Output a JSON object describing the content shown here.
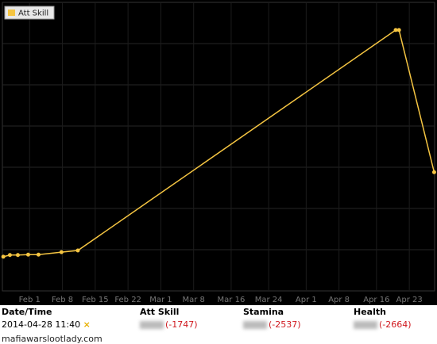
{
  "chart_data": {
    "type": "line",
    "series": [
      {
        "name": "Att Skill",
        "color": "#f5c542",
        "x": [
          26.4,
          27.8,
          29.5,
          31.7,
          33.9,
          38.8,
          42.3,
          110.1,
          110.8,
          118.3
        ],
        "values": [
          0.83,
          0.87,
          0.87,
          0.88,
          0.88,
          0.94,
          0.98,
          6.33,
          6.33,
          2.88
        ]
      }
    ],
    "xlim": [
      26.2,
      118.4
    ],
    "xticks": [
      {
        "value": 32,
        "label": "Feb 1"
      },
      {
        "value": 39,
        "label": "Feb 8"
      },
      {
        "value": 46,
        "label": "Feb 15"
      },
      {
        "value": 53,
        "label": "Feb 22"
      },
      {
        "value": 60,
        "label": "Mar 1"
      },
      {
        "value": 67,
        "label": "Mar 8"
      },
      {
        "value": 75,
        "label": "Mar 16"
      },
      {
        "value": 83,
        "label": "Mar 24"
      },
      {
        "value": 91,
        "label": "Apr 1"
      },
      {
        "value": 98,
        "label": "Apr 8"
      },
      {
        "value": 106,
        "label": "Apr 16"
      },
      {
        "value": 113,
        "label": "Apr 23"
      }
    ],
    "ylim": [
      0,
      7
    ],
    "yticks": [
      1,
      2,
      3,
      4,
      5,
      6
    ],
    "grid": true,
    "legend": "top-left"
  },
  "table": {
    "columns": [
      "Date/Time",
      "Att Skill",
      "Stamina",
      "Health"
    ],
    "rows": [
      [
        "2014-04-28 11:40",
        "(-1747)",
        "(-2537)",
        "(-2664)"
      ]
    ],
    "marker": "×"
  },
  "footer": "mafiawarslootlady.com"
}
